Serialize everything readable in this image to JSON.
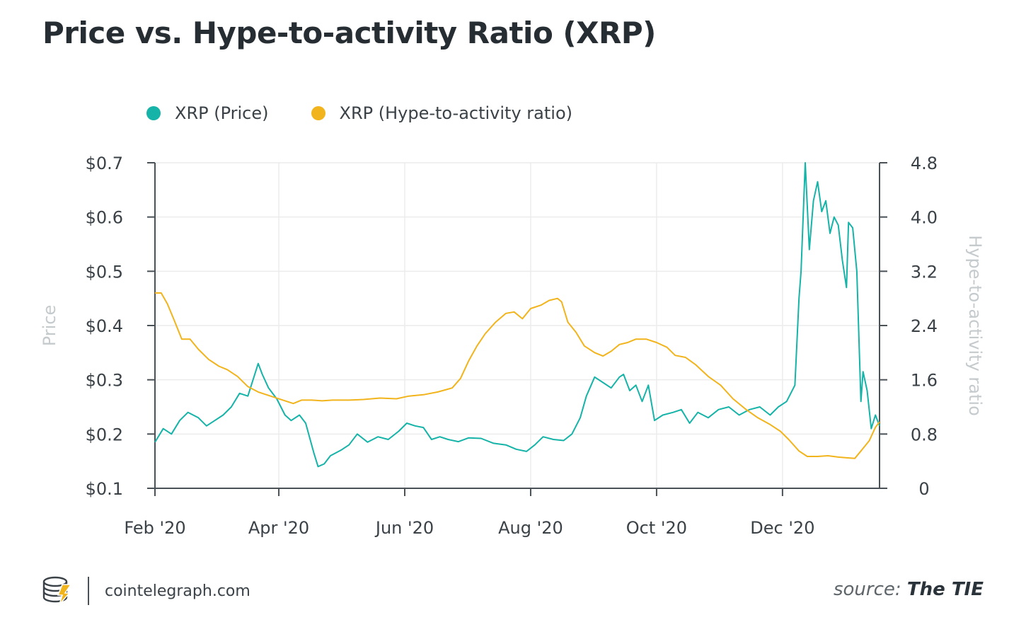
{
  "title": "Price vs. Hype-to-activity Ratio (XRP)",
  "legend": [
    {
      "label": "XRP (Price)",
      "color": "#16b3a8"
    },
    {
      "label": "XRP (Hype-to-activity ratio)",
      "color": "#f2b41c"
    }
  ],
  "footer": {
    "site": "cointelegraph.com",
    "source_prefix": "source: ",
    "source_name": "The TIE",
    "logo_icon": "cointelegraph-logo-icon"
  },
  "chart_data": {
    "type": "line",
    "x_ticks": [
      "Feb '20",
      "Apr '20",
      "Jun '20",
      "Aug '20",
      "Oct '20",
      "Dec '20"
    ],
    "xlim": [
      "2020-02-01",
      "2021-01-17"
    ],
    "y_left": {
      "label": "Price",
      "ticks": [
        "$0.1",
        "$0.2",
        "$0.3",
        "$0.4",
        "$0.5",
        "$0.6",
        "$0.7"
      ],
      "ylim": [
        0.1,
        0.7
      ]
    },
    "y_right": {
      "label": "Hype-to-activity ratio",
      "ticks": [
        "0",
        "0.8",
        "1.6",
        "2.4",
        "3.2",
        "4.0",
        "4.8"
      ],
      "ylim": [
        0,
        4.8
      ]
    },
    "grid": true,
    "legend_position": "top-left",
    "series": [
      {
        "name": "XRP (Price)",
        "axis": "left",
        "color": "#16b3a8",
        "points": [
          [
            "2020-02-01",
            0.185
          ],
          [
            "2020-02-05",
            0.21
          ],
          [
            "2020-02-09",
            0.2
          ],
          [
            "2020-02-13",
            0.225
          ],
          [
            "2020-02-17",
            0.24
          ],
          [
            "2020-02-22",
            0.23
          ],
          [
            "2020-02-26",
            0.215
          ],
          [
            "2020-03-01",
            0.225
          ],
          [
            "2020-03-05",
            0.235
          ],
          [
            "2020-03-09",
            0.25
          ],
          [
            "2020-03-13",
            0.275
          ],
          [
            "2020-03-17",
            0.27
          ],
          [
            "2020-03-22",
            0.33
          ],
          [
            "2020-03-24",
            0.31
          ],
          [
            "2020-03-27",
            0.285
          ],
          [
            "2020-03-31",
            0.265
          ],
          [
            "2020-04-04",
            0.235
          ],
          [
            "2020-04-07",
            0.225
          ],
          [
            "2020-04-11",
            0.235
          ],
          [
            "2020-04-14",
            0.22
          ],
          [
            "2020-04-18",
            0.165
          ],
          [
            "2020-04-20",
            0.14
          ],
          [
            "2020-04-23",
            0.145
          ],
          [
            "2020-04-26",
            0.16
          ],
          [
            "2020-05-01",
            0.17
          ],
          [
            "2020-05-05",
            0.18
          ],
          [
            "2020-05-09",
            0.2
          ],
          [
            "2020-05-14",
            0.185
          ],
          [
            "2020-05-19",
            0.195
          ],
          [
            "2020-05-24",
            0.19
          ],
          [
            "2020-05-29",
            0.205
          ],
          [
            "2020-06-02",
            0.22
          ],
          [
            "2020-06-06",
            0.215
          ],
          [
            "2020-06-10",
            0.212
          ],
          [
            "2020-06-14",
            0.19
          ],
          [
            "2020-06-18",
            0.195
          ],
          [
            "2020-06-22",
            0.19
          ],
          [
            "2020-06-27",
            0.186
          ],
          [
            "2020-07-02",
            0.193
          ],
          [
            "2020-07-08",
            0.192
          ],
          [
            "2020-07-14",
            0.183
          ],
          [
            "2020-07-20",
            0.18
          ],
          [
            "2020-07-25",
            0.172
          ],
          [
            "2020-07-30",
            0.168
          ],
          [
            "2020-08-03",
            0.18
          ],
          [
            "2020-08-07",
            0.195
          ],
          [
            "2020-08-12",
            0.19
          ],
          [
            "2020-08-17",
            0.188
          ],
          [
            "2020-08-21",
            0.2
          ],
          [
            "2020-08-25",
            0.23
          ],
          [
            "2020-08-28",
            0.27
          ],
          [
            "2020-09-01",
            0.305
          ],
          [
            "2020-09-05",
            0.295
          ],
          [
            "2020-09-09",
            0.285
          ],
          [
            "2020-09-13",
            0.305
          ],
          [
            "2020-09-15",
            0.31
          ],
          [
            "2020-09-18",
            0.28
          ],
          [
            "2020-09-21",
            0.29
          ],
          [
            "2020-09-24",
            0.26
          ],
          [
            "2020-09-27",
            0.29
          ],
          [
            "2020-09-30",
            0.225
          ],
          [
            "2020-10-04",
            0.235
          ],
          [
            "2020-10-09",
            0.24
          ],
          [
            "2020-10-13",
            0.245
          ],
          [
            "2020-10-17",
            0.22
          ],
          [
            "2020-10-21",
            0.24
          ],
          [
            "2020-10-26",
            0.23
          ],
          [
            "2020-10-31",
            0.245
          ],
          [
            "2020-11-05",
            0.25
          ],
          [
            "2020-11-10",
            0.235
          ],
          [
            "2020-11-15",
            0.245
          ],
          [
            "2020-11-20",
            0.25
          ],
          [
            "2020-11-25",
            0.235
          ],
          [
            "2020-11-29",
            0.25
          ],
          [
            "2020-12-03",
            0.26
          ],
          [
            "2020-12-07",
            0.29
          ],
          [
            "2020-12-09",
            0.45
          ],
          [
            "2020-12-10",
            0.5
          ],
          [
            "2020-12-12",
            0.7
          ],
          [
            "2020-12-14",
            0.54
          ],
          [
            "2020-12-16",
            0.63
          ],
          [
            "2020-12-18",
            0.665
          ],
          [
            "2020-12-20",
            0.61
          ],
          [
            "2020-12-22",
            0.63
          ],
          [
            "2020-12-24",
            0.57
          ],
          [
            "2020-12-26",
            0.6
          ],
          [
            "2020-12-28",
            0.585
          ],
          [
            "2020-12-30",
            0.52
          ],
          [
            "2021-01-01",
            0.47
          ],
          [
            "2021-01-02",
            0.59
          ],
          [
            "2021-01-04",
            0.58
          ],
          [
            "2021-01-06",
            0.5
          ],
          [
            "2021-01-08",
            0.26
          ],
          [
            "2021-01-09",
            0.315
          ],
          [
            "2021-01-11",
            0.28
          ],
          [
            "2021-01-13",
            0.21
          ],
          [
            "2021-01-15",
            0.235
          ],
          [
            "2021-01-17",
            0.215
          ]
        ]
      },
      {
        "name": "XRP (Hype-to-activity ratio)",
        "axis": "right",
        "color": "#f2b41c",
        "points": [
          [
            "2020-02-01",
            2.88
          ],
          [
            "2020-02-04",
            2.88
          ],
          [
            "2020-02-07",
            2.72
          ],
          [
            "2020-02-10",
            2.5
          ],
          [
            "2020-02-14",
            2.2
          ],
          [
            "2020-02-18",
            2.2
          ],
          [
            "2020-02-22",
            2.05
          ],
          [
            "2020-02-27",
            1.9
          ],
          [
            "2020-03-03",
            1.8
          ],
          [
            "2020-03-07",
            1.75
          ],
          [
            "2020-03-12",
            1.65
          ],
          [
            "2020-03-17",
            1.5
          ],
          [
            "2020-03-22",
            1.42
          ],
          [
            "2020-03-28",
            1.36
          ],
          [
            "2020-04-03",
            1.3
          ],
          [
            "2020-04-08",
            1.25
          ],
          [
            "2020-04-12",
            1.3
          ],
          [
            "2020-04-17",
            1.3
          ],
          [
            "2020-04-22",
            1.29
          ],
          [
            "2020-04-27",
            1.3
          ],
          [
            "2020-05-05",
            1.3
          ],
          [
            "2020-05-12",
            1.31
          ],
          [
            "2020-05-20",
            1.33
          ],
          [
            "2020-05-28",
            1.32
          ],
          [
            "2020-06-03",
            1.36
          ],
          [
            "2020-06-10",
            1.38
          ],
          [
            "2020-06-17",
            1.42
          ],
          [
            "2020-06-24",
            1.48
          ],
          [
            "2020-06-28",
            1.62
          ],
          [
            "2020-07-02",
            1.88
          ],
          [
            "2020-07-06",
            2.1
          ],
          [
            "2020-07-10",
            2.28
          ],
          [
            "2020-07-15",
            2.45
          ],
          [
            "2020-07-20",
            2.58
          ],
          [
            "2020-07-24",
            2.6
          ],
          [
            "2020-07-28",
            2.5
          ],
          [
            "2020-08-01",
            2.65
          ],
          [
            "2020-08-06",
            2.7
          ],
          [
            "2020-08-10",
            2.77
          ],
          [
            "2020-08-14",
            2.8
          ],
          [
            "2020-08-16",
            2.75
          ],
          [
            "2020-08-19",
            2.45
          ],
          [
            "2020-08-23",
            2.3
          ],
          [
            "2020-08-27",
            2.1
          ],
          [
            "2020-09-01",
            2.0
          ],
          [
            "2020-09-05",
            1.95
          ],
          [
            "2020-09-09",
            2.02
          ],
          [
            "2020-09-13",
            2.12
          ],
          [
            "2020-09-17",
            2.15
          ],
          [
            "2020-09-21",
            2.2
          ],
          [
            "2020-09-26",
            2.2
          ],
          [
            "2020-10-01",
            2.15
          ],
          [
            "2020-10-06",
            2.08
          ],
          [
            "2020-10-10",
            1.96
          ],
          [
            "2020-10-15",
            1.93
          ],
          [
            "2020-10-20",
            1.82
          ],
          [
            "2020-10-26",
            1.65
          ],
          [
            "2020-11-01",
            1.52
          ],
          [
            "2020-11-07",
            1.32
          ],
          [
            "2020-11-13",
            1.17
          ],
          [
            "2020-11-19",
            1.04
          ],
          [
            "2020-11-25",
            0.94
          ],
          [
            "2020-11-30",
            0.84
          ],
          [
            "2020-12-04",
            0.72
          ],
          [
            "2020-12-09",
            0.55
          ],
          [
            "2020-12-13",
            0.47
          ],
          [
            "2020-12-18",
            0.47
          ],
          [
            "2020-12-23",
            0.48
          ],
          [
            "2020-12-28",
            0.46
          ],
          [
            "2021-01-01",
            0.45
          ],
          [
            "2021-01-05",
            0.44
          ],
          [
            "2021-01-08",
            0.55
          ],
          [
            "2021-01-12",
            0.7
          ],
          [
            "2021-01-15",
            0.9
          ],
          [
            "2021-01-17",
            0.98
          ]
        ]
      }
    ]
  }
}
